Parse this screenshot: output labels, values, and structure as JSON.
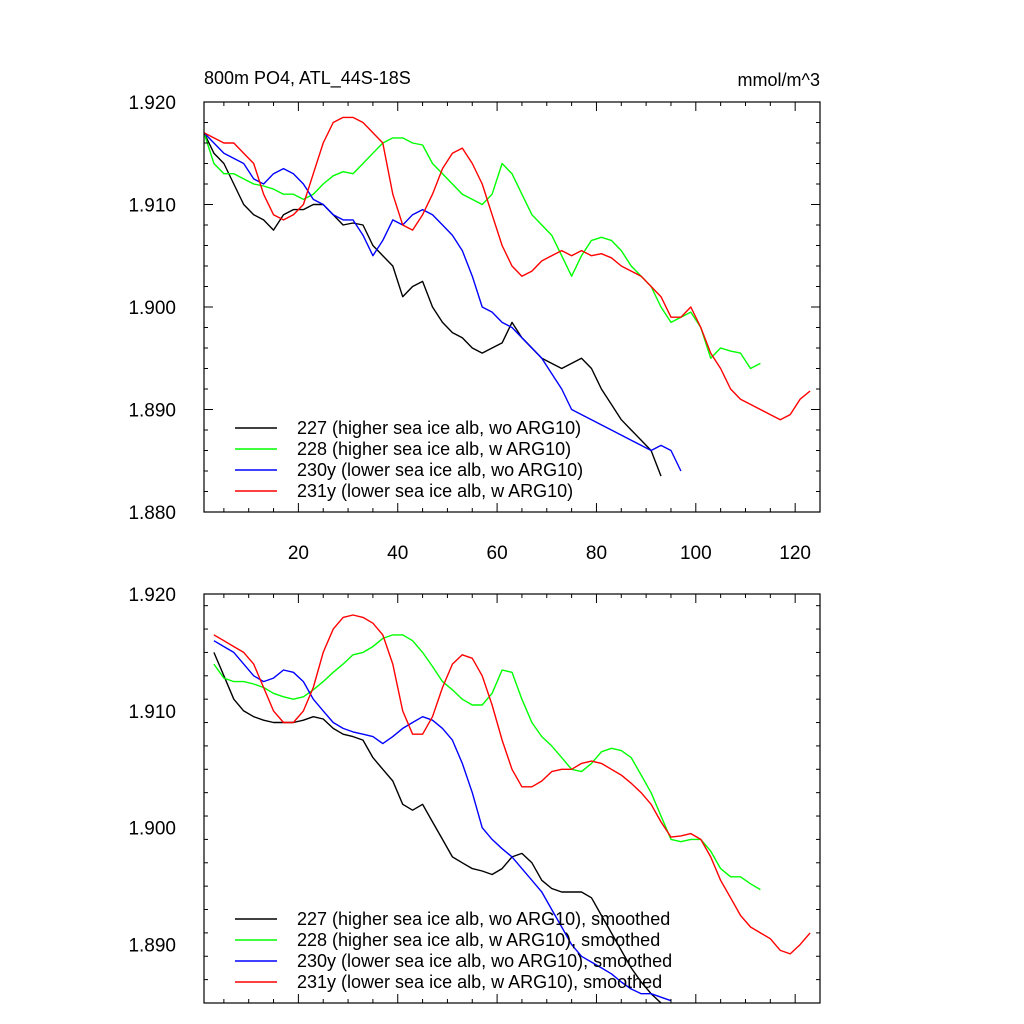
{
  "chart_data": [
    {
      "type": "line",
      "title": "800m PO4, ATL_44S-18S",
      "units": "mmol/m^3",
      "xlim": [
        1,
        125
      ],
      "ylim": [
        1.88,
        1.92
      ],
      "yticks": [
        1.88,
        1.89,
        1.9,
        1.91,
        1.92
      ],
      "ytick_labels": [
        "1.880",
        "1.890",
        "1.900",
        "1.910",
        "1.920"
      ],
      "xticks": [
        20,
        40,
        60,
        80,
        100,
        120
      ],
      "xtick_labels": [
        "20",
        "40",
        "60",
        "80",
        "100",
        "120"
      ],
      "legend_position": "bottom-left",
      "series": [
        {
          "name": "227 (higher sea ice alb, wo ARG10)",
          "color": "#000000",
          "x": [
            1,
            3,
            5,
            7,
            9,
            11,
            13,
            15,
            17,
            19,
            21,
            23,
            25,
            27,
            29,
            31,
            33,
            35,
            37,
            39,
            41,
            43,
            45,
            47,
            49,
            51,
            53,
            55,
            57,
            59,
            61,
            63,
            65,
            67,
            69,
            71,
            73,
            75,
            77,
            79,
            81,
            83,
            85,
            87,
            89,
            91,
            93
          ],
          "y": [
            1.917,
            1.915,
            1.914,
            1.912,
            1.91,
            1.909,
            1.9085,
            1.9075,
            1.909,
            1.9095,
            1.9095,
            1.91,
            1.91,
            1.909,
            1.908,
            1.9082,
            1.908,
            1.906,
            1.905,
            1.904,
            1.901,
            1.902,
            1.9025,
            1.9,
            1.8985,
            1.8975,
            1.897,
            1.896,
            1.8955,
            1.896,
            1.8965,
            1.8985,
            1.897,
            1.896,
            1.895,
            1.8945,
            1.894,
            1.8945,
            1.895,
            1.894,
            1.892,
            1.8905,
            1.889,
            1.888,
            1.887,
            1.886,
            1.8835
          ]
        },
        {
          "name": "228 (higher sea ice alb, w ARG10)",
          "color": "#00ff00",
          "x": [
            1,
            3,
            5,
            7,
            9,
            11,
            13,
            15,
            17,
            19,
            21,
            23,
            25,
            27,
            29,
            31,
            33,
            35,
            37,
            39,
            41,
            43,
            45,
            47,
            49,
            51,
            53,
            55,
            57,
            59,
            61,
            63,
            65,
            67,
            69,
            71,
            73,
            75,
            77,
            79,
            81,
            83,
            85,
            87,
            89,
            91,
            93,
            95,
            97,
            99,
            101,
            103,
            105,
            107,
            109,
            111,
            113
          ],
          "y": [
            1.917,
            1.914,
            1.913,
            1.913,
            1.9125,
            1.912,
            1.9118,
            1.9115,
            1.911,
            1.911,
            1.9105,
            1.911,
            1.912,
            1.9128,
            1.9132,
            1.913,
            1.914,
            1.915,
            1.916,
            1.9165,
            1.9165,
            1.916,
            1.9158,
            1.914,
            1.913,
            1.912,
            1.911,
            1.9105,
            1.91,
            1.911,
            1.914,
            1.913,
            1.911,
            1.909,
            1.908,
            1.907,
            1.905,
            1.903,
            1.905,
            1.9065,
            1.9068,
            1.9065,
            1.9055,
            1.904,
            1.903,
            1.902,
            1.9,
            1.8985,
            1.899,
            1.8995,
            1.898,
            1.895,
            1.896,
            1.8957,
            1.8955,
            1.894,
            1.8945
          ]
        },
        {
          "name": "230y (lower sea ice alb, wo ARG10)",
          "color": "#0000ff",
          "x": [
            1,
            3,
            5,
            7,
            9,
            11,
            13,
            15,
            17,
            19,
            21,
            23,
            25,
            27,
            29,
            31,
            33,
            35,
            37,
            39,
            41,
            43,
            45,
            47,
            49,
            51,
            53,
            55,
            57,
            59,
            61,
            63,
            65,
            67,
            69,
            71,
            73,
            75,
            77,
            79,
            81,
            83,
            85,
            87,
            89,
            91,
            93,
            95,
            97
          ],
          "y": [
            1.917,
            1.916,
            1.915,
            1.9145,
            1.914,
            1.9125,
            1.912,
            1.913,
            1.9135,
            1.913,
            1.912,
            1.9105,
            1.91,
            1.909,
            1.9085,
            1.9085,
            1.907,
            1.905,
            1.9065,
            1.9085,
            1.908,
            1.909,
            1.9095,
            1.909,
            1.908,
            1.907,
            1.9055,
            1.903,
            1.9,
            1.8995,
            1.8985,
            1.898,
            1.897,
            1.896,
            1.895,
            1.8935,
            1.892,
            1.89,
            1.8895,
            1.889,
            1.8885,
            1.888,
            1.8875,
            1.887,
            1.8865,
            1.886,
            1.8865,
            1.886,
            1.884
          ]
        },
        {
          "name": "231y (lower sea ice alb, w ARG10)",
          "color": "#ff0000",
          "x": [
            1,
            3,
            5,
            7,
            9,
            11,
            13,
            15,
            17,
            19,
            21,
            23,
            25,
            27,
            29,
            31,
            33,
            35,
            37,
            39,
            41,
            43,
            45,
            47,
            49,
            51,
            53,
            55,
            57,
            59,
            61,
            63,
            65,
            67,
            69,
            71,
            73,
            75,
            77,
            79,
            81,
            83,
            85,
            87,
            89,
            91,
            93,
            95,
            97,
            99,
            101,
            103,
            105,
            107,
            109,
            111,
            113,
            115,
            117,
            119,
            121,
            123
          ],
          "y": [
            1.917,
            1.9165,
            1.916,
            1.916,
            1.915,
            1.914,
            1.911,
            1.909,
            1.9085,
            1.909,
            1.91,
            1.913,
            1.916,
            1.918,
            1.9185,
            1.9185,
            1.918,
            1.917,
            1.916,
            1.911,
            1.908,
            1.9075,
            1.909,
            1.911,
            1.9135,
            1.915,
            1.9155,
            1.914,
            1.912,
            1.909,
            1.906,
            1.904,
            1.903,
            1.9035,
            1.9045,
            1.905,
            1.9055,
            1.905,
            1.9055,
            1.905,
            1.9052,
            1.9048,
            1.904,
            1.9035,
            1.903,
            1.902,
            1.901,
            1.899,
            1.899,
            1.9,
            1.898,
            1.8955,
            1.894,
            1.892,
            1.891,
            1.8905,
            1.89,
            1.8895,
            1.889,
            1.8895,
            1.891,
            1.8918
          ]
        }
      ]
    },
    {
      "type": "line",
      "title": "",
      "xlim": [
        1,
        125
      ],
      "ylim": [
        1.885,
        1.92
      ],
      "yticks": [
        1.89,
        1.9,
        1.91,
        1.92
      ],
      "ytick_labels": [
        "1.890",
        "1.900",
        "1.910",
        "1.920"
      ],
      "xticks": [
        20,
        40,
        60,
        80,
        100,
        120
      ],
      "legend_position": "bottom-left",
      "series": [
        {
          "name": "227 (higher sea ice alb, wo ARG10), smoothed",
          "color": "#000000",
          "x": [
            3,
            5,
            7,
            9,
            11,
            13,
            15,
            17,
            19,
            21,
            23,
            25,
            27,
            29,
            31,
            33,
            35,
            37,
            39,
            41,
            43,
            45,
            47,
            49,
            51,
            53,
            55,
            57,
            59,
            61,
            63,
            65,
            67,
            69,
            71,
            73,
            75,
            77,
            79,
            81,
            83,
            85,
            87,
            89,
            91,
            93
          ],
          "y": [
            1.915,
            1.913,
            1.911,
            1.91,
            1.9095,
            1.9092,
            1.909,
            1.909,
            1.909,
            1.9092,
            1.9095,
            1.9093,
            1.9085,
            1.908,
            1.9078,
            1.9075,
            1.906,
            1.905,
            1.904,
            1.902,
            1.9015,
            1.902,
            1.9005,
            1.899,
            1.8975,
            1.897,
            1.8965,
            1.8963,
            1.896,
            1.8965,
            1.8975,
            1.8978,
            1.897,
            1.8955,
            1.8948,
            1.8945,
            1.8945,
            1.8945,
            1.894,
            1.8925,
            1.891,
            1.8895,
            1.888,
            1.8868,
            1.8858,
            1.885
          ]
        },
        {
          "name": "228 (higher sea ice alb, w ARG10), smoothed",
          "color": "#00ff00",
          "x": [
            3,
            5,
            7,
            9,
            11,
            13,
            15,
            17,
            19,
            21,
            23,
            25,
            27,
            29,
            31,
            33,
            35,
            37,
            39,
            41,
            43,
            45,
            47,
            49,
            51,
            53,
            55,
            57,
            59,
            61,
            63,
            65,
            67,
            69,
            71,
            73,
            75,
            77,
            79,
            81,
            83,
            85,
            87,
            89,
            91,
            93,
            95,
            97,
            99,
            101,
            103,
            105,
            107,
            109,
            111,
            113
          ],
          "y": [
            1.914,
            1.9128,
            1.9125,
            1.9125,
            1.9123,
            1.912,
            1.9115,
            1.9112,
            1.911,
            1.9112,
            1.9118,
            1.9125,
            1.9133,
            1.914,
            1.9148,
            1.915,
            1.9155,
            1.9162,
            1.9165,
            1.9165,
            1.916,
            1.915,
            1.9138,
            1.9125,
            1.9118,
            1.911,
            1.9105,
            1.9105,
            1.9115,
            1.9135,
            1.9133,
            1.911,
            1.909,
            1.9078,
            1.907,
            1.906,
            1.905,
            1.9048,
            1.9055,
            1.9065,
            1.9068,
            1.9066,
            1.906,
            1.9045,
            1.903,
            1.901,
            1.899,
            1.8988,
            1.899,
            1.899,
            1.898,
            1.8965,
            1.8958,
            1.8958,
            1.8952,
            1.8947
          ]
        },
        {
          "name": "230y (lower sea ice alb, wo ARG10), smoothed",
          "color": "#0000ff",
          "x": [
            3,
            5,
            7,
            9,
            11,
            13,
            15,
            17,
            19,
            21,
            23,
            25,
            27,
            29,
            31,
            33,
            35,
            37,
            39,
            41,
            43,
            45,
            47,
            49,
            51,
            53,
            55,
            57,
            59,
            61,
            63,
            65,
            67,
            69,
            71,
            73,
            75,
            77,
            79,
            81,
            83,
            85,
            87,
            89,
            91,
            93,
            95
          ],
          "y": [
            1.916,
            1.9155,
            1.915,
            1.914,
            1.913,
            1.9125,
            1.9128,
            1.9135,
            1.9133,
            1.9125,
            1.911,
            1.91,
            1.909,
            1.9085,
            1.9082,
            1.908,
            1.9078,
            1.9072,
            1.9078,
            1.9085,
            1.909,
            1.9095,
            1.9092,
            1.9085,
            1.9075,
            1.9055,
            1.903,
            1.9,
            1.899,
            1.8982,
            1.8975,
            1.8965,
            1.8955,
            1.8945,
            1.893,
            1.8915,
            1.89,
            1.889,
            1.8885,
            1.888,
            1.8875,
            1.8868,
            1.8862,
            1.8858,
            1.8858,
            1.8855,
            1.8852
          ]
        },
        {
          "name": "231y (lower sea ice alb, w ARG10), smoothed",
          "color": "#ff0000",
          "x": [
            3,
            5,
            7,
            9,
            11,
            13,
            15,
            17,
            19,
            21,
            23,
            25,
            27,
            29,
            31,
            33,
            35,
            37,
            39,
            41,
            43,
            45,
            47,
            49,
            51,
            53,
            55,
            57,
            59,
            61,
            63,
            65,
            67,
            69,
            71,
            73,
            75,
            77,
            79,
            81,
            83,
            85,
            87,
            89,
            91,
            93,
            95,
            97,
            99,
            101,
            103,
            105,
            107,
            109,
            111,
            113,
            115,
            117,
            119,
            121,
            123
          ],
          "y": [
            1.9165,
            1.916,
            1.9155,
            1.915,
            1.914,
            1.912,
            1.91,
            1.909,
            1.909,
            1.91,
            1.912,
            1.915,
            1.917,
            1.918,
            1.9182,
            1.918,
            1.9175,
            1.9165,
            1.914,
            1.91,
            1.908,
            1.908,
            1.9095,
            1.912,
            1.914,
            1.9148,
            1.9145,
            1.913,
            1.9105,
            1.9075,
            1.905,
            1.9035,
            1.9035,
            1.904,
            1.9048,
            1.905,
            1.905,
            1.9055,
            1.9057,
            1.9055,
            1.905,
            1.9045,
            1.9038,
            1.903,
            1.902,
            1.9005,
            1.8992,
            1.8993,
            1.8995,
            1.899,
            1.8975,
            1.8955,
            1.894,
            1.8925,
            1.8915,
            1.891,
            1.8905,
            1.8895,
            1.8892,
            1.89,
            1.891
          ]
        }
      ]
    }
  ]
}
